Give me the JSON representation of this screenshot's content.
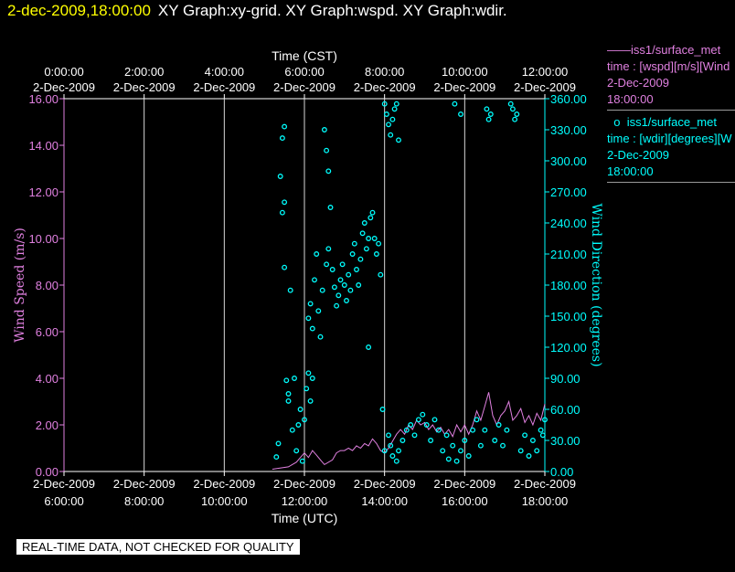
{
  "header": {
    "datetime": "2-dec-2009,18:00:00",
    "title": "XY Graph:xy-grid.  XY Graph:wspd.  XY Graph:wdir."
  },
  "legend": {
    "wspd": {
      "name": "iss1/surface_met",
      "line2": "time : [wspd][m/s][Wind",
      "line3": "2-Dec-2009",
      "line4": "18:00:00",
      "color": "#e080e0"
    },
    "wdir": {
      "name": "iss1/surface_met",
      "line2": "time : [wdir][degrees][W",
      "line3": "2-Dec-2009",
      "line4": "18:00:00",
      "color": "#00ffff"
    }
  },
  "footer": "REAL-TIME DATA, NOT CHECKED FOR QUALITY",
  "chart_data": {
    "type": "line",
    "top_axis": {
      "label": "Time (CST)",
      "ticks": [
        {
          "date": "2-Dec-2009",
          "time": "0:00:00"
        },
        {
          "date": "2-Dec-2009",
          "time": "2:00:00"
        },
        {
          "date": "2-Dec-2009",
          "time": "4:00:00"
        },
        {
          "date": "2-Dec-2009",
          "time": "6:00:00"
        },
        {
          "date": "2-Dec-2009",
          "time": "8:00:00"
        },
        {
          "date": "2-Dec-2009",
          "time": "10:00:00"
        },
        {
          "date": "2-Dec-2009",
          "time": "12:00:00"
        }
      ]
    },
    "bottom_axis": {
      "label": "Time (UTC)",
      "range": [
        6,
        18
      ],
      "tick_hours": [
        6,
        8,
        10,
        12,
        14,
        16,
        18
      ],
      "ticks": [
        {
          "date": "2-Dec-2009",
          "time": "6:00:00"
        },
        {
          "date": "2-Dec-2009",
          "time": "8:00:00"
        },
        {
          "date": "2-Dec-2009",
          "time": "10:00:00"
        },
        {
          "date": "2-Dec-2009",
          "time": "12:00:00"
        },
        {
          "date": "2-Dec-2009",
          "time": "14:00:00"
        },
        {
          "date": "2-Dec-2009",
          "time": "16:00:00"
        },
        {
          "date": "2-Dec-2009",
          "time": "18:00:00"
        }
      ]
    },
    "grid_hours": [
      8,
      10,
      12,
      14,
      16
    ],
    "left_axis": {
      "label": "Wind Speed (m/s)",
      "ylim": [
        0,
        16
      ],
      "ticks": [
        "0.00",
        "2.00",
        "4.00",
        "6.00",
        "8.00",
        "10.00",
        "12.00",
        "14.00",
        "16.00"
      ]
    },
    "right_axis": {
      "label": "Wind Direction (degrees)",
      "ylim": [
        0,
        360
      ],
      "ticks": [
        "0.00",
        "30.00",
        "60.00",
        "90.00",
        "120.00",
        "150.00",
        "180.00",
        "210.00",
        "240.00",
        "270.00",
        "300.00",
        "330.00",
        "360.00"
      ]
    },
    "series": [
      {
        "name": "iss1/surface_met",
        "axis": "left",
        "style": "line",
        "color": "#e080e0",
        "points": [
          [
            11.2,
            0.1
          ],
          [
            11.6,
            0.2
          ],
          [
            11.8,
            0.4
          ],
          [
            11.9,
            0.6
          ],
          [
            12.0,
            0.8
          ],
          [
            12.1,
            0.6
          ],
          [
            12.2,
            0.9
          ],
          [
            12.3,
            0.7
          ],
          [
            12.4,
            0.5
          ],
          [
            12.5,
            0.3
          ],
          [
            12.7,
            0.5
          ],
          [
            12.8,
            0.8
          ],
          [
            12.9,
            0.9
          ],
          [
            13.0,
            0.9
          ],
          [
            13.1,
            1.0
          ],
          [
            13.2,
            0.9
          ],
          [
            13.3,
            1.1
          ],
          [
            13.4,
            1.0
          ],
          [
            13.5,
            1.2
          ],
          [
            13.6,
            1.1
          ],
          [
            13.7,
            1.4
          ],
          [
            13.8,
            1.2
          ],
          [
            13.9,
            0.9
          ],
          [
            14.0,
            0.8
          ],
          [
            14.1,
            1.0
          ],
          [
            14.2,
            1.3
          ],
          [
            14.3,
            1.6
          ],
          [
            14.4,
            1.8
          ],
          [
            14.5,
            1.6
          ],
          [
            14.6,
            2.0
          ],
          [
            14.7,
            1.8
          ],
          [
            14.8,
            2.2
          ],
          [
            14.9,
            2.0
          ],
          [
            15.0,
            2.1
          ],
          [
            15.1,
            1.8
          ],
          [
            15.2,
            2.0
          ],
          [
            15.3,
            1.7
          ],
          [
            15.4,
            1.9
          ],
          [
            15.5,
            1.6
          ],
          [
            15.6,
            1.8
          ],
          [
            15.7,
            1.5
          ],
          [
            15.8,
            2.0
          ],
          [
            15.9,
            1.7
          ],
          [
            16.0,
            2.0
          ],
          [
            16.1,
            1.6
          ],
          [
            16.2,
            2.0
          ],
          [
            16.3,
            2.6
          ],
          [
            16.4,
            2.2
          ],
          [
            16.5,
            2.8
          ],
          [
            16.6,
            3.4
          ],
          [
            16.7,
            2.4
          ],
          [
            16.8,
            2.0
          ],
          [
            16.9,
            2.4
          ],
          [
            17.0,
            2.6
          ],
          [
            17.1,
            3.0
          ],
          [
            17.2,
            2.2
          ],
          [
            17.3,
            2.4
          ],
          [
            17.4,
            2.7
          ],
          [
            17.5,
            2.1
          ],
          [
            17.6,
            2.4
          ],
          [
            17.7,
            2.0
          ],
          [
            17.8,
            2.5
          ],
          [
            17.9,
            2.2
          ],
          [
            18.0,
            2.9
          ]
        ]
      },
      {
        "name": "iss1/surface_met",
        "axis": "right",
        "style": "markers",
        "color": "#00ffff",
        "points": [
          [
            11.3,
            14
          ],
          [
            11.35,
            27
          ],
          [
            11.4,
            285
          ],
          [
            11.45,
            322
          ],
          [
            11.5,
            333
          ],
          [
            11.45,
            250
          ],
          [
            11.5,
            197
          ],
          [
            11.5,
            260
          ],
          [
            11.55,
            88
          ],
          [
            11.6,
            68
          ],
          [
            11.6,
            75
          ],
          [
            11.65,
            175
          ],
          [
            11.7,
            40
          ],
          [
            11.75,
            90
          ],
          [
            11.8,
            20
          ],
          [
            11.85,
            45
          ],
          [
            11.9,
            60
          ],
          [
            11.95,
            10
          ],
          [
            12.0,
            50
          ],
          [
            12.05,
            80
          ],
          [
            12.1,
            95
          ],
          [
            12.15,
            68
          ],
          [
            12.2,
            90
          ],
          [
            12.1,
            148
          ],
          [
            12.15,
            162
          ],
          [
            12.2,
            138
          ],
          [
            12.25,
            185
          ],
          [
            12.3,
            210
          ],
          [
            12.35,
            155
          ],
          [
            12.4,
            130
          ],
          [
            12.45,
            175
          ],
          [
            12.5,
            330
          ],
          [
            12.55,
            310
          ],
          [
            12.6,
            290
          ],
          [
            12.65,
            255
          ],
          [
            12.55,
            200
          ],
          [
            12.6,
            215
          ],
          [
            12.7,
            195
          ],
          [
            12.75,
            178
          ],
          [
            12.8,
            160
          ],
          [
            12.85,
            170
          ],
          [
            12.9,
            185
          ],
          [
            12.95,
            200
          ],
          [
            13.0,
            180
          ],
          [
            13.05,
            165
          ],
          [
            13.1,
            190
          ],
          [
            13.15,
            175
          ],
          [
            13.2,
            210
          ],
          [
            13.25,
            220
          ],
          [
            13.3,
            195
          ],
          [
            13.35,
            180
          ],
          [
            13.4,
            205
          ],
          [
            13.45,
            230
          ],
          [
            13.5,
            240
          ],
          [
            13.55,
            215
          ],
          [
            13.6,
            225
          ],
          [
            13.65,
            245
          ],
          [
            13.7,
            250
          ],
          [
            13.75,
            225
          ],
          [
            13.8,
            210
          ],
          [
            13.85,
            220
          ],
          [
            13.9,
            190
          ],
          [
            13.6,
            120
          ],
          [
            13.95,
            60
          ],
          [
            14.0,
            355
          ],
          [
            14.05,
            345
          ],
          [
            14.1,
            335
          ],
          [
            14.15,
            325
          ],
          [
            14.2,
            340
          ],
          [
            14.25,
            350
          ],
          [
            14.3,
            355
          ],
          [
            14.35,
            320
          ],
          [
            14.0,
            20
          ],
          [
            14.1,
            35
          ],
          [
            14.15,
            25
          ],
          [
            14.2,
            15
          ],
          [
            14.3,
            10
          ],
          [
            14.35,
            20
          ],
          [
            14.45,
            30
          ],
          [
            14.55,
            40
          ],
          [
            14.65,
            45
          ],
          [
            14.75,
            35
          ],
          [
            14.85,
            50
          ],
          [
            14.95,
            55
          ],
          [
            15.05,
            45
          ],
          [
            15.15,
            30
          ],
          [
            15.25,
            50
          ],
          [
            15.35,
            40
          ],
          [
            15.45,
            20
          ],
          [
            15.55,
            35
          ],
          [
            15.6,
            12
          ],
          [
            15.7,
            25
          ],
          [
            15.8,
            10
          ],
          [
            15.9,
            20
          ],
          [
            15.75,
            355
          ],
          [
            15.9,
            345
          ],
          [
            16.0,
            30
          ],
          [
            16.1,
            15
          ],
          [
            16.2,
            40
          ],
          [
            16.3,
            50
          ],
          [
            16.4,
            25
          ],
          [
            16.5,
            40
          ],
          [
            16.55,
            350
          ],
          [
            16.6,
            340
          ],
          [
            16.65,
            345
          ],
          [
            16.75,
            30
          ],
          [
            16.85,
            45
          ],
          [
            16.95,
            25
          ],
          [
            17.05,
            40
          ],
          [
            17.15,
            355
          ],
          [
            17.2,
            350
          ],
          [
            17.25,
            340
          ],
          [
            17.3,
            345
          ],
          [
            17.4,
            20
          ],
          [
            17.5,
            35
          ],
          [
            17.6,
            15
          ],
          [
            17.7,
            30
          ],
          [
            17.8,
            20
          ],
          [
            17.9,
            40
          ],
          [
            17.95,
            35
          ],
          [
            18.0,
            50
          ]
        ]
      }
    ]
  }
}
